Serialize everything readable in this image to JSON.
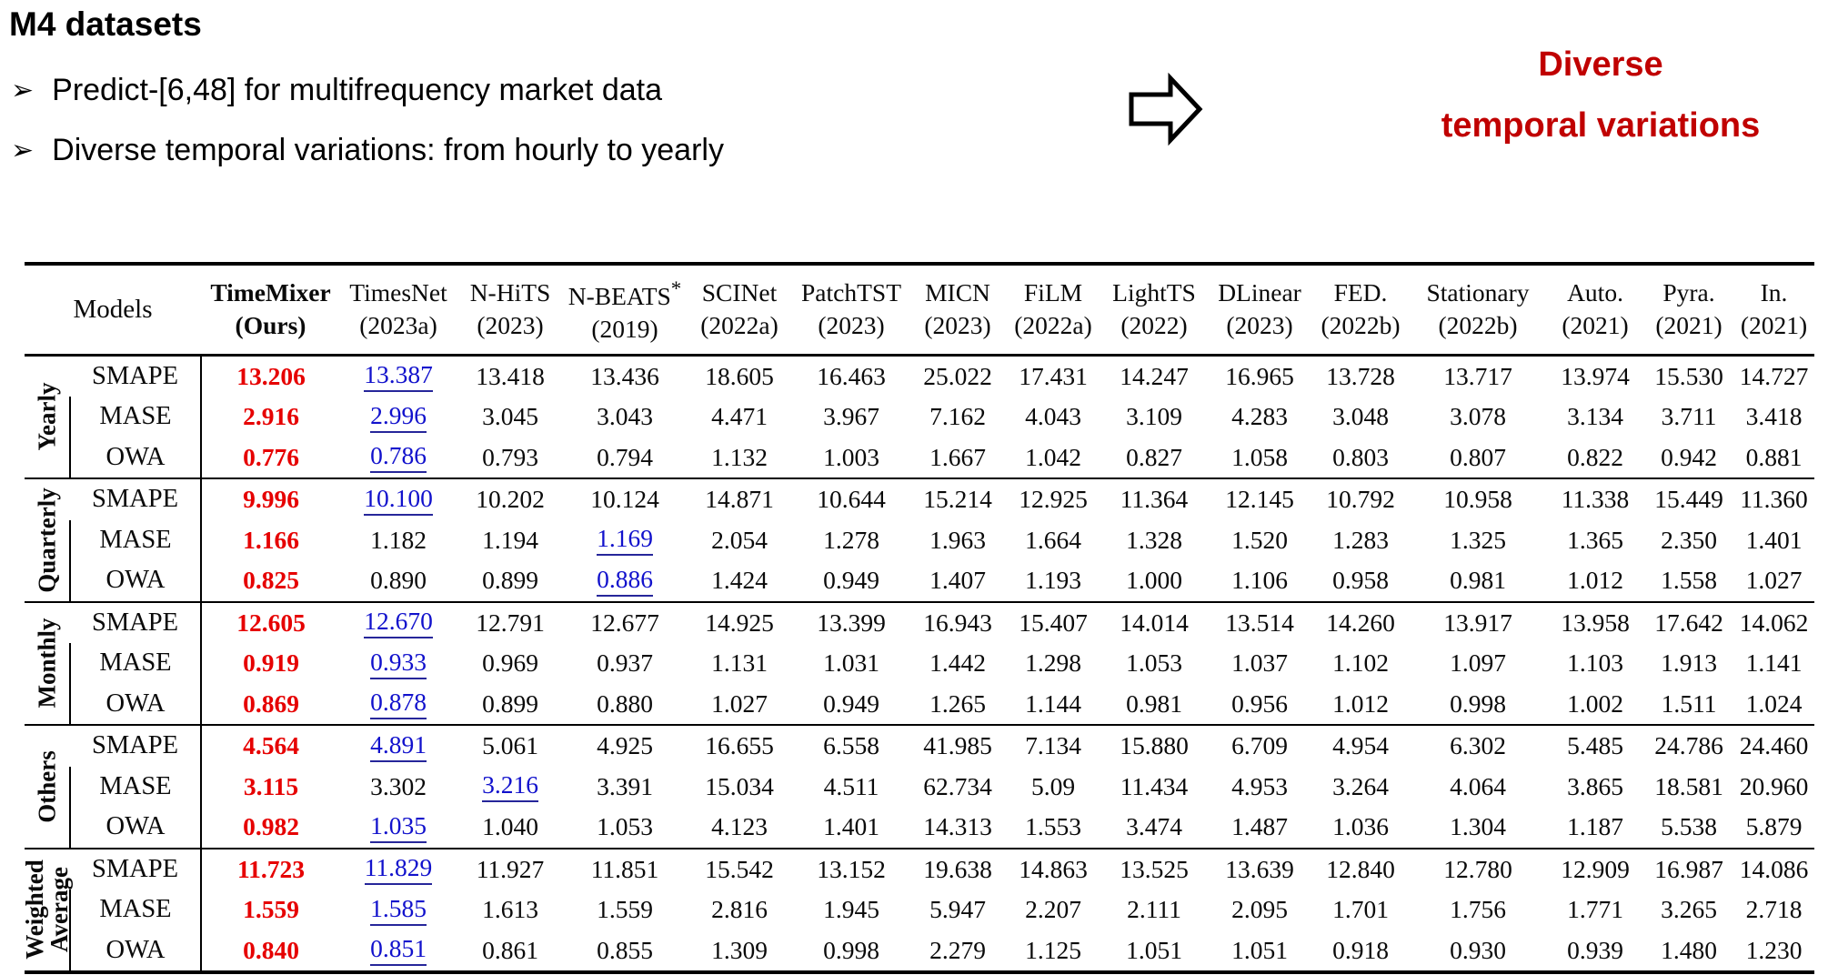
{
  "header": {
    "title": "M4 datasets",
    "bullet_char": "➢",
    "bullets": [
      "Predict-[6,48] for multifrequency market data",
      "Diverse temporal variations: from hourly to yearly"
    ],
    "callout": {
      "line1": "Diverse",
      "line2": "temporal variations",
      "color": "#c00000"
    }
  },
  "table": {
    "models_label": "Models",
    "colors": {
      "best": "#e60000",
      "second": "#1111cc"
    },
    "columns": [
      {
        "name": "TimeMixer",
        "year": "(Ours)",
        "ours": true
      },
      {
        "name": "TimesNet",
        "year": "(2023a)"
      },
      {
        "name": "N-HiTS",
        "year": "(2023)"
      },
      {
        "name": "N-BEATS*",
        "year": "(2019)"
      },
      {
        "name": "SCINet",
        "year": "(2022a)"
      },
      {
        "name": "PatchTST",
        "year": "(2023)"
      },
      {
        "name": "MICN",
        "year": "(2023)"
      },
      {
        "name": "FiLM",
        "year": "(2022a)"
      },
      {
        "name": "LightTS",
        "year": "(2022)"
      },
      {
        "name": "DLinear",
        "year": "(2023)"
      },
      {
        "name": "FED.",
        "year": "(2022b)"
      },
      {
        "name": "Stationary",
        "year": "(2022b)"
      },
      {
        "name": "Auto.",
        "year": "(2021)"
      },
      {
        "name": "Pyra.",
        "year": "(2021)"
      },
      {
        "name": "In.",
        "year": "(2021)"
      }
    ],
    "best_col": 0,
    "groups": [
      {
        "label": "Yearly",
        "rows": [
          {
            "metric": "SMAPE",
            "second": 1,
            "values": [
              "13.206",
              "13.387",
              "13.418",
              "13.436",
              "18.605",
              "16.463",
              "25.022",
              "17.431",
              "14.247",
              "16.965",
              "13.728",
              "13.717",
              "13.974",
              "15.530",
              "14.727"
            ]
          },
          {
            "metric": "MASE",
            "second": 1,
            "values": [
              "2.916",
              "2.996",
              "3.045",
              "3.043",
              "4.471",
              "3.967",
              "7.162",
              "4.043",
              "3.109",
              "4.283",
              "3.048",
              "3.078",
              "3.134",
              "3.711",
              "3.418"
            ]
          },
          {
            "metric": "OWA",
            "second": 1,
            "values": [
              "0.776",
              "0.786",
              "0.793",
              "0.794",
              "1.132",
              "1.003",
              "1.667",
              "1.042",
              "0.827",
              "1.058",
              "0.803",
              "0.807",
              "0.822",
              "0.942",
              "0.881"
            ]
          }
        ]
      },
      {
        "label": "Quarterly",
        "rows": [
          {
            "metric": "SMAPE",
            "second": 1,
            "values": [
              "9.996",
              "10.100",
              "10.202",
              "10.124",
              "14.871",
              "10.644",
              "15.214",
              "12.925",
              "11.364",
              "12.145",
              "10.792",
              "10.958",
              "11.338",
              "15.449",
              "11.360"
            ]
          },
          {
            "metric": "MASE",
            "second": 3,
            "values": [
              "1.166",
              "1.182",
              "1.194",
              "1.169",
              "2.054",
              "1.278",
              "1.963",
              "1.664",
              "1.328",
              "1.520",
              "1.283",
              "1.325",
              "1.365",
              "2.350",
              "1.401"
            ]
          },
          {
            "metric": "OWA",
            "second": 3,
            "values": [
              "0.825",
              "0.890",
              "0.899",
              "0.886",
              "1.424",
              "0.949",
              "1.407",
              "1.193",
              "1.000",
              "1.106",
              "0.958",
              "0.981",
              "1.012",
              "1.558",
              "1.027"
            ]
          }
        ]
      },
      {
        "label": "Monthly",
        "rows": [
          {
            "metric": "SMAPE",
            "second": 1,
            "values": [
              "12.605",
              "12.670",
              "12.791",
              "12.677",
              "14.925",
              "13.399",
              "16.943",
              "15.407",
              "14.014",
              "13.514",
              "14.260",
              "13.917",
              "13.958",
              "17.642",
              "14.062"
            ]
          },
          {
            "metric": "MASE",
            "second": 1,
            "values": [
              "0.919",
              "0.933",
              "0.969",
              "0.937",
              "1.131",
              "1.031",
              "1.442",
              "1.298",
              "1.053",
              "1.037",
              "1.102",
              "1.097",
              "1.103",
              "1.913",
              "1.141"
            ]
          },
          {
            "metric": "OWA",
            "second": 1,
            "values": [
              "0.869",
              "0.878",
              "0.899",
              "0.880",
              "1.027",
              "0.949",
              "1.265",
              "1.144",
              "0.981",
              "0.956",
              "1.012",
              "0.998",
              "1.002",
              "1.511",
              "1.024"
            ]
          }
        ]
      },
      {
        "label": "Others",
        "rows": [
          {
            "metric": "SMAPE",
            "second": 1,
            "values": [
              "4.564",
              "4.891",
              "5.061",
              "4.925",
              "16.655",
              "6.558",
              "41.985",
              "7.134",
              "15.880",
              "6.709",
              "4.954",
              "6.302",
              "5.485",
              "24.786",
              "24.460"
            ]
          },
          {
            "metric": "MASE",
            "second": 2,
            "values": [
              "3.115",
              "3.302",
              "3.216",
              "3.391",
              "15.034",
              "4.511",
              "62.734",
              "5.09",
              "11.434",
              "4.953",
              "3.264",
              "4.064",
              "3.865",
              "18.581",
              "20.960"
            ]
          },
          {
            "metric": "OWA",
            "second": 1,
            "values": [
              "0.982",
              "1.035",
              "1.040",
              "1.053",
              "4.123",
              "1.401",
              "14.313",
              "1.553",
              "3.474",
              "1.487",
              "1.036",
              "1.304",
              "1.187",
              "5.538",
              "5.879"
            ]
          }
        ]
      },
      {
        "label": "Weighted Average",
        "rows": [
          {
            "metric": "SMAPE",
            "second": 1,
            "values": [
              "11.723",
              "11.829",
              "11.927",
              "11.851",
              "15.542",
              "13.152",
              "19.638",
              "14.863",
              "13.525",
              "13.639",
              "12.840",
              "12.780",
              "12.909",
              "16.987",
              "14.086"
            ]
          },
          {
            "metric": "MASE",
            "second": 1,
            "values": [
              "1.559",
              "1.585",
              "1.613",
              "1.559",
              "2.816",
              "1.945",
              "5.947",
              "2.207",
              "2.111",
              "2.095",
              "1.701",
              "1.756",
              "1.771",
              "3.265",
              "2.718"
            ]
          },
          {
            "metric": "OWA",
            "second": 1,
            "values": [
              "0.840",
              "0.851",
              "0.861",
              "0.855",
              "1.309",
              "0.998",
              "2.279",
              "1.125",
              "1.051",
              "1.051",
              "0.918",
              "0.930",
              "0.939",
              "1.480",
              "1.230"
            ]
          }
        ]
      }
    ]
  }
}
